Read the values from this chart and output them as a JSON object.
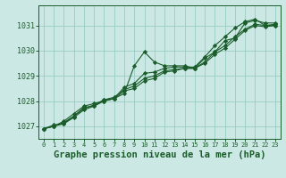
{
  "bg_color": "#cce8e4",
  "grid_color": "#99ccc4",
  "line_color": "#1a5c2a",
  "marker_color": "#1a5c2a",
  "xlabel": "Graphe pression niveau de la mer (hPa)",
  "xlabel_fontsize": 7.5,
  "ylim": [
    1026.5,
    1031.8
  ],
  "xlim": [
    -0.5,
    23.5
  ],
  "yticks": [
    1027,
    1028,
    1029,
    1030,
    1031
  ],
  "xticks": [
    0,
    1,
    2,
    3,
    4,
    5,
    6,
    7,
    8,
    9,
    10,
    11,
    12,
    13,
    14,
    15,
    16,
    17,
    18,
    19,
    20,
    21,
    22,
    23
  ],
  "series": [
    [
      1026.9,
      1027.0,
      1027.2,
      1027.5,
      1027.8,
      1027.9,
      1028.0,
      1028.1,
      1028.3,
      1029.4,
      1029.95,
      1029.55,
      1029.4,
      1029.4,
      1029.4,
      1029.3,
      1029.7,
      1029.95,
      1030.4,
      1030.5,
      1031.1,
      1031.2,
      1031.1,
      1031.1
    ],
    [
      1026.9,
      1027.0,
      1027.15,
      1027.4,
      1027.75,
      1027.8,
      1028.05,
      1028.1,
      1028.55,
      1028.7,
      1029.1,
      1029.15,
      1029.3,
      1029.35,
      1029.35,
      1029.35,
      1029.75,
      1030.2,
      1030.55,
      1030.9,
      1031.15,
      1031.25,
      1031.0,
      1031.0
    ],
    [
      1026.9,
      1027.05,
      1027.1,
      1027.4,
      1027.7,
      1027.85,
      1028.05,
      1028.15,
      1028.45,
      1028.6,
      1028.9,
      1029.0,
      1029.2,
      1029.25,
      1029.3,
      1029.3,
      1029.55,
      1029.95,
      1030.2,
      1030.55,
      1030.85,
      1031.05,
      1031.0,
      1031.05
    ],
    [
      1026.9,
      1027.0,
      1027.1,
      1027.35,
      1027.65,
      1027.8,
      1028.0,
      1028.1,
      1028.4,
      1028.5,
      1028.8,
      1028.9,
      1029.15,
      1029.2,
      1029.3,
      1029.3,
      1029.5,
      1029.85,
      1030.1,
      1030.45,
      1030.8,
      1031.0,
      1030.95,
      1031.0
    ]
  ]
}
